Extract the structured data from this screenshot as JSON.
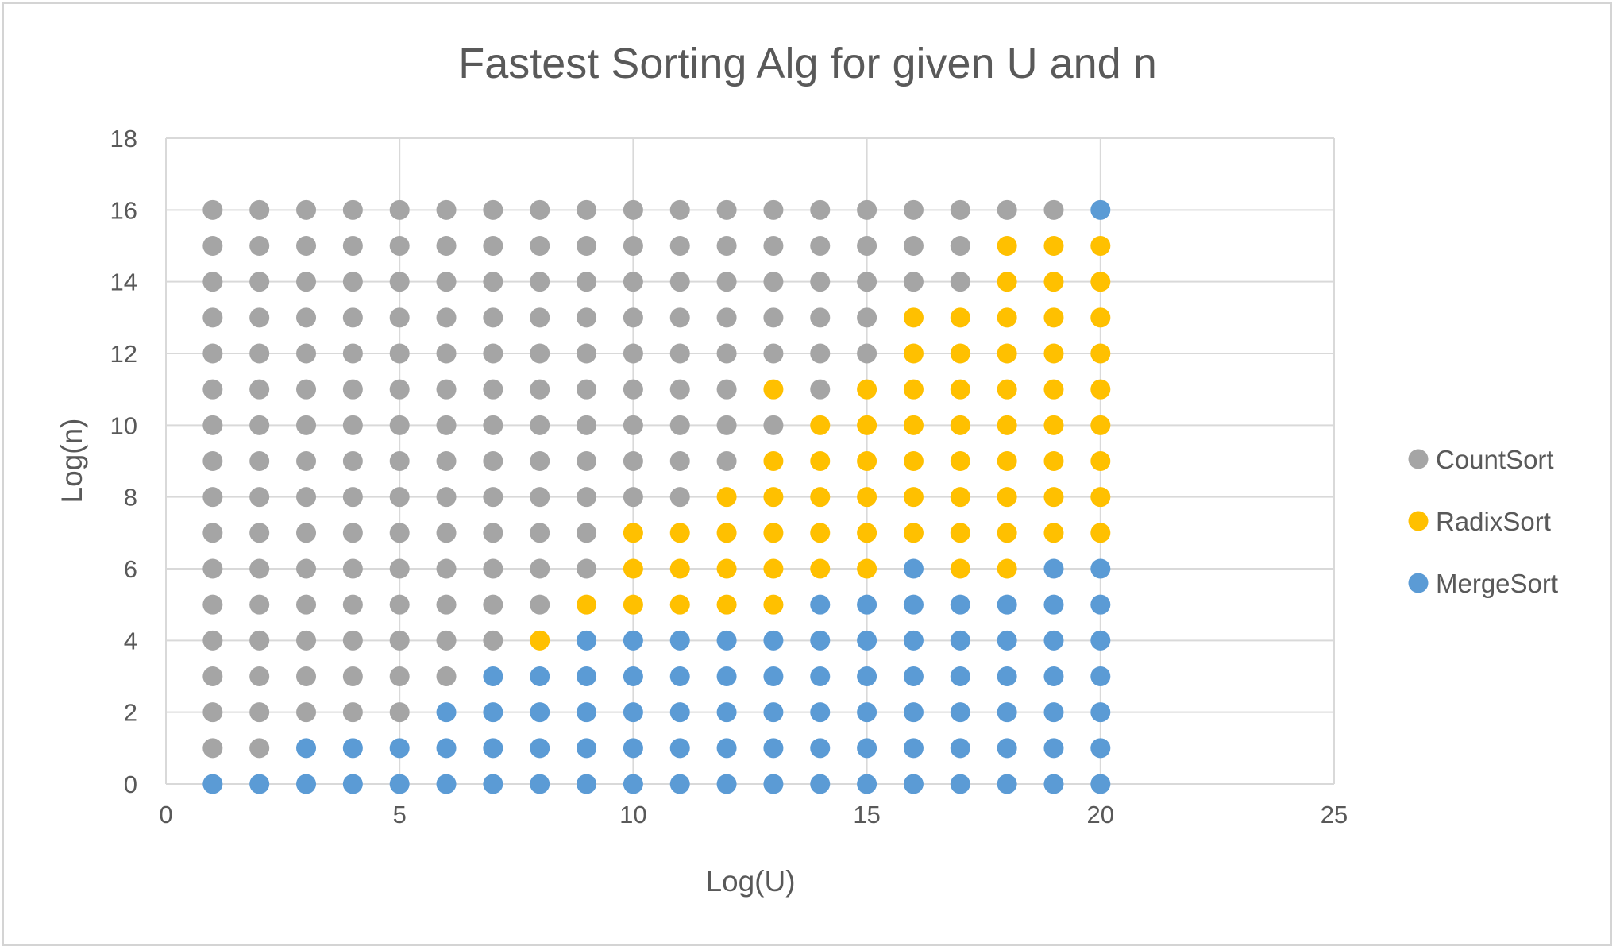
{
  "chart_data": {
    "type": "scatter",
    "title": "Fastest Sorting Alg for given U and n",
    "xlabel": "Log(U)",
    "ylabel": "Log(n)",
    "xlim": [
      0,
      25
    ],
    "ylim": [
      0,
      18
    ],
    "xticks": [
      0,
      5,
      10,
      15,
      20,
      25
    ],
    "yticks": [
      0,
      2,
      4,
      6,
      8,
      10,
      12,
      14,
      16,
      18
    ],
    "grid": true,
    "legend_position": "right",
    "series": [
      {
        "name": "CountSort",
        "color": "#a5a5a5",
        "grid_columns": [
          {
            "x": 1,
            "y": [
              1,
              2,
              3,
              4,
              5,
              6,
              7,
              8,
              9,
              10,
              11,
              12,
              13,
              14,
              15,
              16
            ]
          },
          {
            "x": 2,
            "y": [
              1,
              2,
              3,
              4,
              5,
              6,
              7,
              8,
              9,
              10,
              11,
              12,
              13,
              14,
              15,
              16
            ]
          },
          {
            "x": 3,
            "y": [
              2,
              3,
              4,
              5,
              6,
              7,
              8,
              9,
              10,
              11,
              12,
              13,
              14,
              15,
              16
            ]
          },
          {
            "x": 4,
            "y": [
              2,
              3,
              4,
              5,
              6,
              7,
              8,
              9,
              10,
              11,
              12,
              13,
              14,
              15,
              16
            ]
          },
          {
            "x": 5,
            "y": [
              2,
              3,
              4,
              5,
              6,
              7,
              8,
              9,
              10,
              11,
              12,
              13,
              14,
              15,
              16
            ]
          },
          {
            "x": 6,
            "y": [
              3,
              4,
              5,
              6,
              7,
              8,
              9,
              10,
              11,
              12,
              13,
              14,
              15,
              16
            ]
          },
          {
            "x": 7,
            "y": [
              4,
              5,
              6,
              7,
              8,
              9,
              10,
              11,
              12,
              13,
              14,
              15,
              16
            ]
          },
          {
            "x": 8,
            "y": [
              5,
              6,
              7,
              8,
              9,
              10,
              11,
              12,
              13,
              14,
              15,
              16
            ]
          },
          {
            "x": 9,
            "y": [
              6,
              7,
              8,
              9,
              10,
              11,
              12,
              13,
              14,
              15,
              16
            ]
          },
          {
            "x": 10,
            "y": [
              8,
              9,
              10,
              11,
              12,
              13,
              14,
              15,
              16
            ]
          },
          {
            "x": 11,
            "y": [
              8,
              9,
              10,
              11,
              12,
              13,
              14,
              15,
              16
            ]
          },
          {
            "x": 12,
            "y": [
              9,
              10,
              11,
              12,
              13,
              14,
              15,
              16
            ]
          },
          {
            "x": 13,
            "y": [
              10,
              12,
              13,
              14,
              15,
              16
            ]
          },
          {
            "x": 14,
            "y": [
              11,
              12,
              13,
              14,
              15,
              16
            ]
          },
          {
            "x": 15,
            "y": [
              12,
              13,
              14,
              15,
              16
            ]
          },
          {
            "x": 16,
            "y": [
              14,
              15,
              16
            ]
          },
          {
            "x": 17,
            "y": [
              14,
              15,
              16
            ]
          },
          {
            "x": 18,
            "y": [
              16
            ]
          },
          {
            "x": 19,
            "y": [
              16
            ]
          }
        ]
      },
      {
        "name": "RadixSort",
        "color": "#ffc000",
        "grid_columns": [
          {
            "x": 8,
            "y": [
              4
            ]
          },
          {
            "x": 9,
            "y": [
              5
            ]
          },
          {
            "x": 10,
            "y": [
              5,
              6,
              7
            ]
          },
          {
            "x": 11,
            "y": [
              5,
              6,
              7
            ]
          },
          {
            "x": 12,
            "y": [
              5,
              6,
              7,
              8
            ]
          },
          {
            "x": 13,
            "y": [
              5,
              6,
              7,
              8,
              9,
              11
            ]
          },
          {
            "x": 14,
            "y": [
              6,
              7,
              8,
              9,
              10
            ]
          },
          {
            "x": 15,
            "y": [
              6,
              7,
              8,
              9,
              10,
              11
            ]
          },
          {
            "x": 16,
            "y": [
              7,
              8,
              9,
              10,
              11,
              12,
              13
            ]
          },
          {
            "x": 17,
            "y": [
              6,
              7,
              8,
              9,
              10,
              11,
              12,
              13
            ]
          },
          {
            "x": 18,
            "y": [
              6,
              7,
              8,
              9,
              10,
              11,
              12,
              13,
              14,
              15
            ]
          },
          {
            "x": 19,
            "y": [
              7,
              8,
              9,
              10,
              11,
              12,
              13,
              14,
              15
            ]
          },
          {
            "x": 20,
            "y": [
              7,
              8,
              9,
              10,
              11,
              12,
              13,
              14,
              15
            ]
          }
        ]
      },
      {
        "name": "MergeSort",
        "color": "#5b9bd5",
        "grid_columns": [
          {
            "x": 1,
            "y": [
              0
            ]
          },
          {
            "x": 2,
            "y": [
              0
            ]
          },
          {
            "x": 3,
            "y": [
              0,
              1
            ]
          },
          {
            "x": 4,
            "y": [
              0,
              1
            ]
          },
          {
            "x": 5,
            "y": [
              0,
              1
            ]
          },
          {
            "x": 6,
            "y": [
              0,
              1,
              2
            ]
          },
          {
            "x": 7,
            "y": [
              0,
              1,
              2,
              3
            ]
          },
          {
            "x": 8,
            "y": [
              0,
              1,
              2,
              3
            ]
          },
          {
            "x": 9,
            "y": [
              0,
              1,
              2,
              3,
              4
            ]
          },
          {
            "x": 10,
            "y": [
              0,
              1,
              2,
              3,
              4
            ]
          },
          {
            "x": 11,
            "y": [
              0,
              1,
              2,
              3,
              4
            ]
          },
          {
            "x": 12,
            "y": [
              0,
              1,
              2,
              3,
              4
            ]
          },
          {
            "x": 13,
            "y": [
              0,
              1,
              2,
              3,
              4
            ]
          },
          {
            "x": 14,
            "y": [
              0,
              1,
              2,
              3,
              4,
              5
            ]
          },
          {
            "x": 15,
            "y": [
              0,
              1,
              2,
              3,
              4,
              5
            ]
          },
          {
            "x": 16,
            "y": [
              0,
              1,
              2,
              3,
              4,
              5,
              6
            ]
          },
          {
            "x": 17,
            "y": [
              0,
              1,
              2,
              3,
              4,
              5
            ]
          },
          {
            "x": 18,
            "y": [
              0,
              1,
              2,
              3,
              4,
              5
            ]
          },
          {
            "x": 19,
            "y": [
              0,
              1,
              2,
              3,
              4,
              5,
              6
            ]
          },
          {
            "x": 20,
            "y": [
              0,
              1,
              2,
              3,
              4,
              5,
              6,
              16
            ]
          }
        ]
      }
    ]
  },
  "colors": {
    "gridline": "#d9d9d9",
    "text": "#595959",
    "border": "#d4d4d4"
  }
}
